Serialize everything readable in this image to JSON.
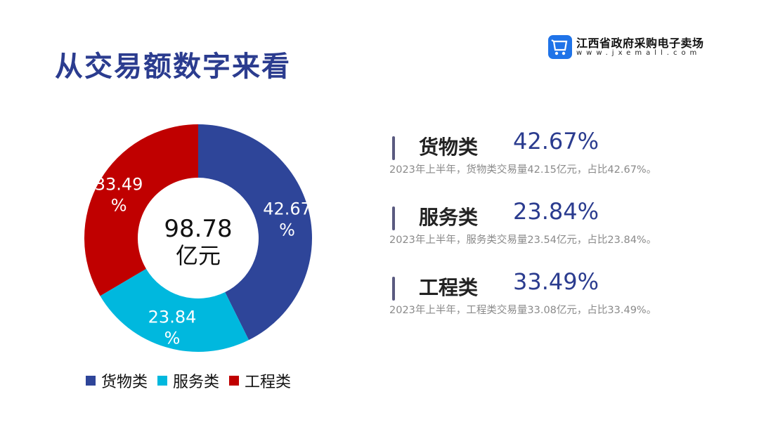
{
  "header": {
    "title": "从交易额数字来看",
    "brand_name": "江西省政府采购电子卖场",
    "brand_url": "www.jxemall.com"
  },
  "chart_data": {
    "type": "pie",
    "center_value": "98.78",
    "center_unit": "亿元",
    "categories": [
      "货物类",
      "服务类",
      "工程类"
    ],
    "values": [
      42.67,
      23.84,
      33.49
    ],
    "slice_labels": [
      "42.67%",
      "23.84%",
      "33.49%"
    ],
    "colors": [
      "#2e4599",
      "#00b8de",
      "#c00000"
    ]
  },
  "legend": [
    {
      "label": "货物类",
      "color": "#2e4599"
    },
    {
      "label": "服务类",
      "color": "#00b8de"
    },
    {
      "label": "工程类",
      "color": "#c00000"
    }
  ],
  "details": [
    {
      "name": "货物类",
      "pct": "42.67%",
      "desc": "2023年上半年，货物类交易量42.15亿元，占比42.67%。"
    },
    {
      "name": "服务类",
      "pct": "23.84%",
      "desc": "2023年上半年，服务类交易量23.54亿元，占比23.84%。"
    },
    {
      "name": "工程类",
      "pct": "33.49%",
      "desc": "2023年上半年，工程类交易量33.08亿元，占比33.49%。"
    }
  ]
}
